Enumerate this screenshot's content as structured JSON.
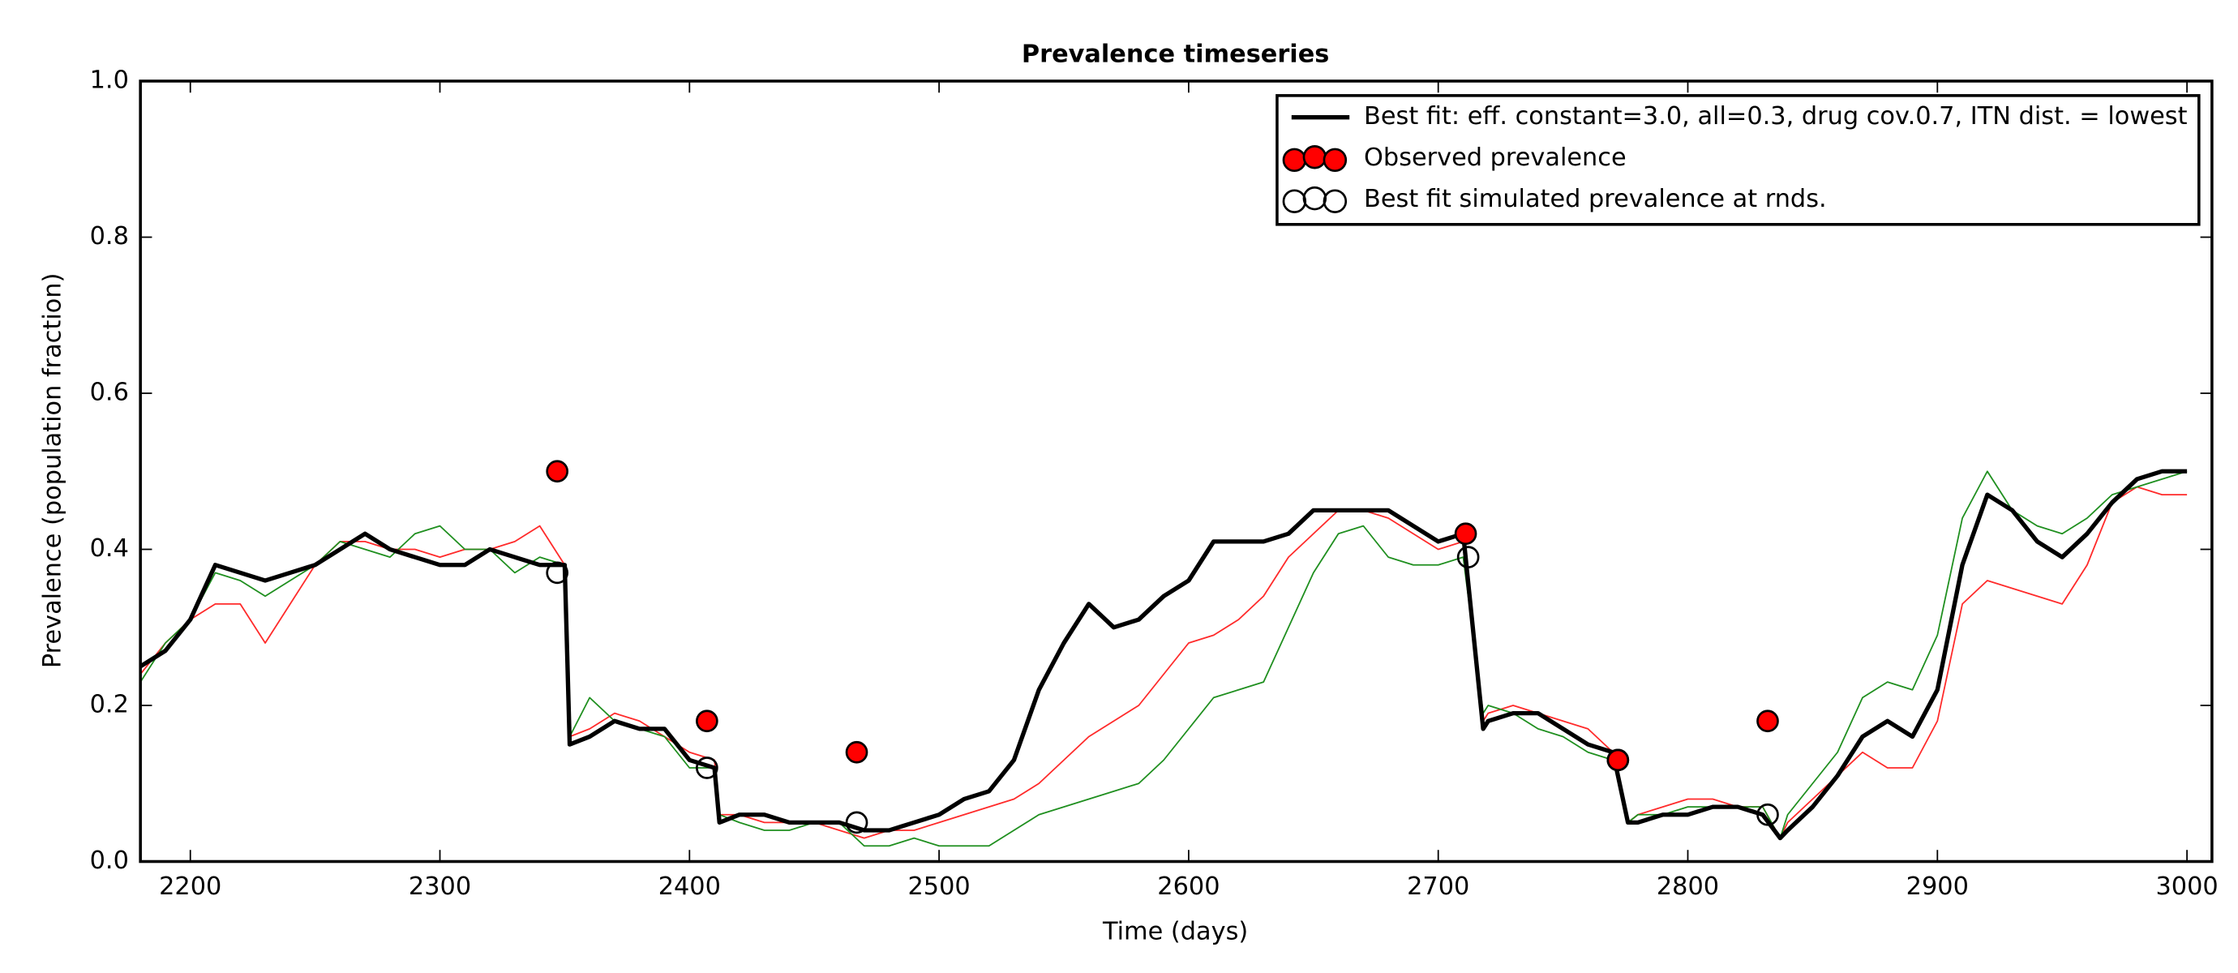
{
  "chart_data": {
    "type": "line",
    "title": "Prevalence timeseries",
    "xlabel": "Time (days)",
    "ylabel": "Prevalence (population fraction)",
    "xlim": [
      2180,
      3010
    ],
    "ylim": [
      0,
      1
    ],
    "xticks": [
      2200,
      2300,
      2400,
      2500,
      2600,
      2700,
      2800,
      2900,
      3000
    ],
    "yticks": [
      {
        "value": 0,
        "label": "0.0"
      },
      0.2,
      0.4,
      0.6,
      0.8,
      {
        "value": 1,
        "label": "1.0"
      }
    ],
    "legend": "upper right",
    "x": [
      2180,
      2190,
      2200,
      2210,
      2220,
      2230,
      2240,
      2250,
      2260,
      2270,
      2280,
      2290,
      2300,
      2310,
      2320,
      2330,
      2340,
      2350,
      2352,
      2360,
      2370,
      2380,
      2390,
      2400,
      2410,
      2412,
      2420,
      2430,
      2440,
      2450,
      2460,
      2470,
      2480,
      2490,
      2500,
      2510,
      2520,
      2530,
      2540,
      2550,
      2560,
      2570,
      2580,
      2590,
      2600,
      2610,
      2620,
      2630,
      2640,
      2650,
      2660,
      2670,
      2680,
      2690,
      2700,
      2710,
      2718,
      2720,
      2730,
      2740,
      2750,
      2760,
      2770,
      2776,
      2780,
      2790,
      2800,
      2810,
      2820,
      2830,
      2837,
      2840,
      2850,
      2860,
      2870,
      2880,
      2890,
      2900,
      2910,
      2920,
      2930,
      2940,
      2950,
      2960,
      2970,
      2980,
      2990,
      3000
    ],
    "series": [
      {
        "type": "line",
        "color": "#ff2a2a",
        "linewidth": 1,
        "values": [
          0.24,
          0.28,
          0.31,
          0.33,
          0.33,
          0.28,
          0.33,
          0.38,
          0.41,
          0.41,
          0.4,
          0.4,
          0.39,
          0.4,
          0.4,
          0.41,
          0.43,
          0.38,
          0.16,
          0.17,
          0.19,
          0.18,
          0.16,
          0.14,
          0.13,
          0.06,
          0.06,
          0.05,
          0.05,
          0.05,
          0.04,
          0.03,
          0.04,
          0.04,
          0.05,
          0.06,
          0.07,
          0.08,
          0.1,
          0.13,
          0.16,
          0.18,
          0.2,
          0.24,
          0.28,
          0.29,
          0.31,
          0.34,
          0.39,
          0.42,
          0.45,
          0.45,
          0.44,
          0.42,
          0.4,
          0.41,
          0.18,
          0.19,
          0.2,
          0.19,
          0.18,
          0.17,
          0.14,
          0.05,
          0.06,
          0.07,
          0.08,
          0.08,
          0.07,
          0.07,
          0.03,
          0.05,
          0.08,
          0.11,
          0.14,
          0.12,
          0.12,
          0.18,
          0.33,
          0.36,
          0.35,
          0.34,
          0.33,
          0.38,
          0.46,
          0.48,
          0.47,
          0.47
        ]
      },
      {
        "type": "line",
        "color": "#1f8f1f",
        "linewidth": 1,
        "values": [
          0.23,
          0.28,
          0.31,
          0.37,
          0.36,
          0.34,
          0.36,
          0.38,
          0.41,
          0.4,
          0.39,
          0.42,
          0.43,
          0.4,
          0.4,
          0.37,
          0.39,
          0.38,
          0.16,
          0.21,
          0.18,
          0.17,
          0.16,
          0.12,
          0.12,
          0.06,
          0.05,
          0.04,
          0.04,
          0.05,
          0.05,
          0.02,
          0.02,
          0.03,
          0.02,
          0.02,
          0.02,
          0.04,
          0.06,
          0.07,
          0.08,
          0.09,
          0.1,
          0.13,
          0.17,
          0.21,
          0.22,
          0.23,
          0.3,
          0.37,
          0.42,
          0.43,
          0.39,
          0.38,
          0.38,
          0.39,
          0.19,
          0.2,
          0.19,
          0.17,
          0.16,
          0.14,
          0.13,
          0.05,
          0.06,
          0.06,
          0.07,
          0.07,
          0.07,
          0.07,
          0.03,
          0.06,
          0.1,
          0.14,
          0.21,
          0.23,
          0.22,
          0.29,
          0.44,
          0.5,
          0.45,
          0.43,
          0.42,
          0.44,
          0.47,
          0.48,
          0.49,
          0.5
        ]
      },
      {
        "type": "line",
        "name": "Best fit: eff. constant=3.0, all=0.3, drug cov.0.7, ITN dist. = lowest",
        "color": "#000000",
        "linewidth": 3,
        "values": [
          0.25,
          0.27,
          0.31,
          0.38,
          0.37,
          0.36,
          0.37,
          0.38,
          0.4,
          0.42,
          0.4,
          0.39,
          0.38,
          0.38,
          0.4,
          0.39,
          0.38,
          0.38,
          0.15,
          0.16,
          0.18,
          0.17,
          0.17,
          0.13,
          0.12,
          0.05,
          0.06,
          0.06,
          0.05,
          0.05,
          0.05,
          0.04,
          0.04,
          0.05,
          0.06,
          0.08,
          0.09,
          0.13,
          0.22,
          0.28,
          0.33,
          0.3,
          0.31,
          0.34,
          0.36,
          0.41,
          0.41,
          0.41,
          0.42,
          0.45,
          0.45,
          0.45,
          0.45,
          0.43,
          0.41,
          0.42,
          0.17,
          0.18,
          0.19,
          0.19,
          0.17,
          0.15,
          0.14,
          0.05,
          0.05,
          0.06,
          0.06,
          0.07,
          0.07,
          0.06,
          0.03,
          0.04,
          0.07,
          0.11,
          0.16,
          0.18,
          0.16,
          0.22,
          0.38,
          0.47,
          0.45,
          0.41,
          0.39,
          0.42,
          0.46,
          0.49,
          0.5,
          0.5
        ]
      },
      {
        "type": "scatter",
        "name": "Observed prevalence",
        "color": "#000000",
        "fill": "#ff0000",
        "x": [
          2347,
          2407,
          2467,
          2711,
          2772,
          2832
        ],
        "values": [
          0.5,
          0.18,
          0.14,
          0.42,
          0.13,
          0.18
        ]
      },
      {
        "type": "scatter",
        "name": "Best fit simulated prevalence at rnds.",
        "color": "#000000",
        "fill": "none",
        "x": [
          2347,
          2407,
          2467,
          2712,
          2772,
          2832
        ],
        "values": [
          0.37,
          0.12,
          0.05,
          0.39,
          0.13,
          0.06
        ]
      }
    ]
  }
}
